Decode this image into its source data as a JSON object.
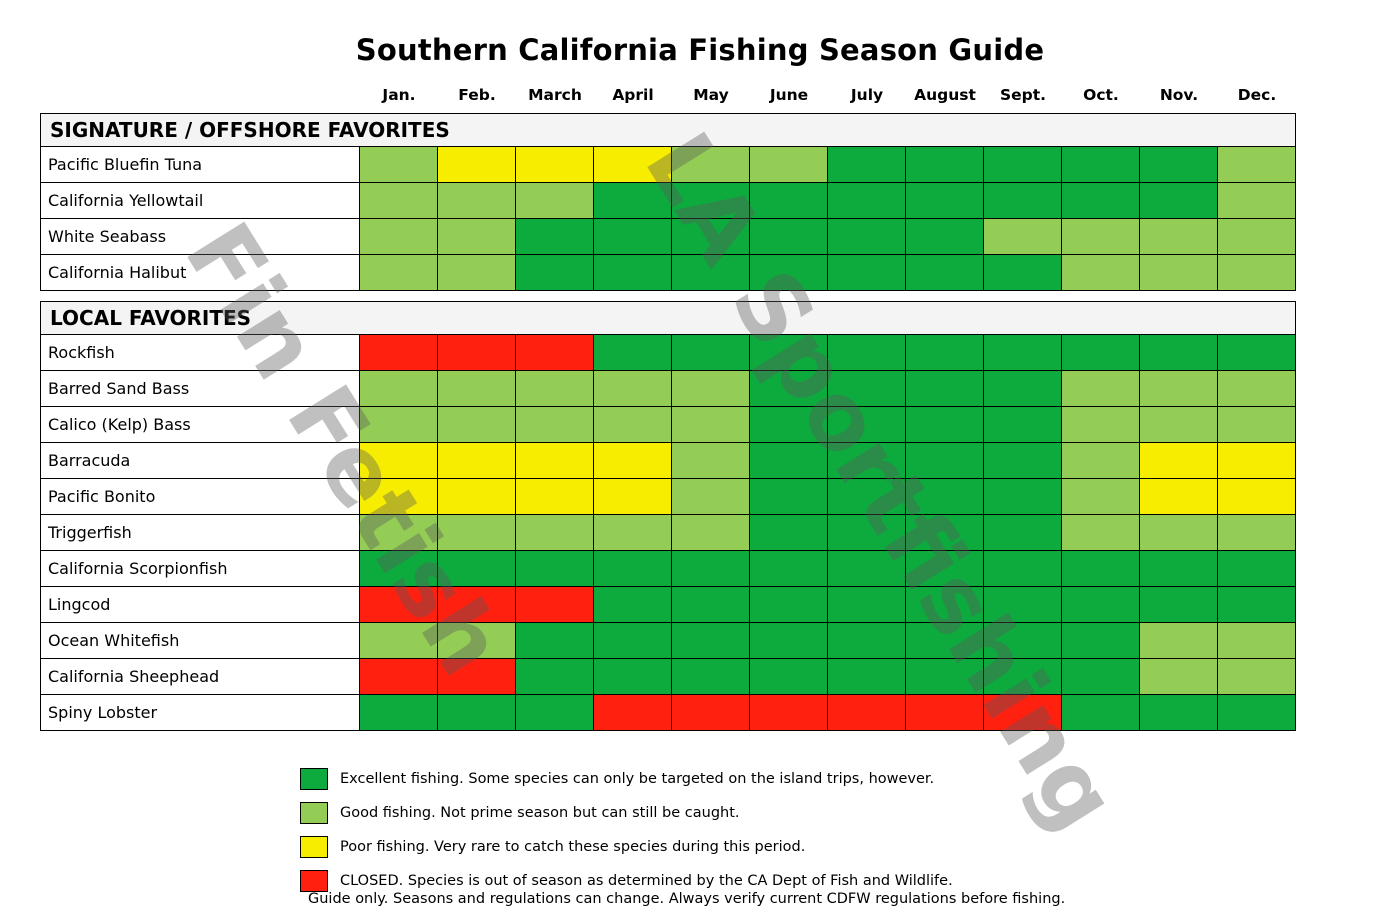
{
  "title": "Southern California Fishing Season Guide",
  "months": [
    "Jan.",
    "Feb.",
    "March",
    "April",
    "May",
    "June",
    "July",
    "August",
    "Sept.",
    "Oct.",
    "Nov.",
    "Dec."
  ],
  "colors": {
    "excellent": "#0dab3e",
    "good": "#93cd55",
    "poor": "#f6ed00",
    "closed": "#ff2010"
  },
  "sections": [
    {
      "title": "SIGNATURE / OFFSHORE FAVORITES",
      "rows": [
        {
          "name": "Pacific Bluefin Tuna",
          "values": [
            "good",
            "poor",
            "poor",
            "poor",
            "good",
            "good",
            "excellent",
            "excellent",
            "excellent",
            "excellent",
            "excellent",
            "good"
          ]
        },
        {
          "name": "California Yellowtail",
          "values": [
            "good",
            "good",
            "good",
            "excellent",
            "excellent",
            "excellent",
            "excellent",
            "excellent",
            "excellent",
            "excellent",
            "excellent",
            "good"
          ]
        },
        {
          "name": "White Seabass",
          "values": [
            "good",
            "good",
            "excellent",
            "excellent",
            "excellent",
            "excellent",
            "excellent",
            "excellent",
            "good",
            "good",
            "good",
            "good"
          ]
        },
        {
          "name": "California Halibut",
          "values": [
            "good",
            "good",
            "excellent",
            "excellent",
            "excellent",
            "excellent",
            "excellent",
            "excellent",
            "excellent",
            "good",
            "good",
            "good"
          ]
        }
      ]
    },
    {
      "title": "LOCAL FAVORITES",
      "rows": [
        {
          "name": "Rockfish",
          "values": [
            "closed",
            "closed",
            "closed",
            "excellent",
            "excellent",
            "excellent",
            "excellent",
            "excellent",
            "excellent",
            "excellent",
            "excellent",
            "excellent"
          ]
        },
        {
          "name": "Barred Sand Bass",
          "values": [
            "good",
            "good",
            "good",
            "good",
            "good",
            "excellent",
            "excellent",
            "excellent",
            "excellent",
            "good",
            "good",
            "good"
          ]
        },
        {
          "name": "Calico (Kelp) Bass",
          "values": [
            "good",
            "good",
            "good",
            "good",
            "good",
            "excellent",
            "excellent",
            "excellent",
            "excellent",
            "good",
            "good",
            "good"
          ]
        },
        {
          "name": "Barracuda",
          "values": [
            "poor",
            "poor",
            "poor",
            "poor",
            "good",
            "excellent",
            "excellent",
            "excellent",
            "excellent",
            "good",
            "poor",
            "poor"
          ]
        },
        {
          "name": "Pacific Bonito",
          "values": [
            "poor",
            "poor",
            "poor",
            "poor",
            "good",
            "excellent",
            "excellent",
            "excellent",
            "excellent",
            "good",
            "poor",
            "poor"
          ]
        },
        {
          "name": "Triggerfish",
          "values": [
            "good",
            "good",
            "good",
            "good",
            "good",
            "excellent",
            "excellent",
            "excellent",
            "excellent",
            "good",
            "good",
            "good"
          ]
        },
        {
          "name": "California Scorpionfish",
          "values": [
            "excellent",
            "excellent",
            "excellent",
            "excellent",
            "excellent",
            "excellent",
            "excellent",
            "excellent",
            "excellent",
            "excellent",
            "excellent",
            "excellent"
          ]
        },
        {
          "name": "Lingcod",
          "values": [
            "closed",
            "closed",
            "closed",
            "excellent",
            "excellent",
            "excellent",
            "excellent",
            "excellent",
            "excellent",
            "excellent",
            "excellent",
            "excellent"
          ]
        },
        {
          "name": "Ocean Whitefish",
          "values": [
            "good",
            "good",
            "excellent",
            "excellent",
            "excellent",
            "excellent",
            "excellent",
            "excellent",
            "excellent",
            "excellent",
            "good",
            "good"
          ]
        },
        {
          "name": "California Sheephead",
          "values": [
            "closed",
            "closed",
            "excellent",
            "excellent",
            "excellent",
            "excellent",
            "excellent",
            "excellent",
            "excellent",
            "excellent",
            "good",
            "good"
          ]
        },
        {
          "name": "Spiny Lobster",
          "values": [
            "excellent",
            "excellent",
            "excellent",
            "closed",
            "closed",
            "closed",
            "closed",
            "closed",
            "closed",
            "excellent",
            "excellent",
            "excellent"
          ]
        }
      ]
    }
  ],
  "legend": [
    {
      "key": "excellent",
      "text": "Excellent fishing. Some species can only be targeted on the island trips, however."
    },
    {
      "key": "good",
      "text": "Good fishing. Not prime season but can still be caught."
    },
    {
      "key": "poor",
      "text": "Poor fishing. Very rare to catch these species during this period."
    },
    {
      "key": "closed",
      "text": "CLOSED. Species is out of season as determined by the CA Dept of Fish and Wildlife."
    }
  ],
  "note": "Guide only. Seasons and regulations can change. Always verify current CDFW regulations before fishing.",
  "watermarks": [
    "LA Sportfishing",
    "Fin Fetish"
  ],
  "chart_data": {
    "type": "heatmap",
    "title": "Southern California Fishing Season Guide",
    "x": [
      "Jan.",
      "Feb.",
      "March",
      "April",
      "May",
      "June",
      "July",
      "August",
      "Sept.",
      "Oct.",
      "Nov.",
      "Dec."
    ],
    "scale": {
      "excellent": 3,
      "good": 2,
      "poor": 1,
      "closed": 0
    },
    "groups": [
      {
        "name": "SIGNATURE / OFFSHORE FAVORITES",
        "series": [
          {
            "name": "Pacific Bluefin Tuna",
            "values": [
              2,
              1,
              1,
              1,
              2,
              2,
              3,
              3,
              3,
              3,
              3,
              2
            ]
          },
          {
            "name": "California Yellowtail",
            "values": [
              2,
              2,
              2,
              3,
              3,
              3,
              3,
              3,
              3,
              3,
              3,
              2
            ]
          },
          {
            "name": "White Seabass",
            "values": [
              2,
              2,
              3,
              3,
              3,
              3,
              3,
              3,
              2,
              2,
              2,
              2
            ]
          },
          {
            "name": "California Halibut",
            "values": [
              2,
              2,
              3,
              3,
              3,
              3,
              3,
              3,
              3,
              2,
              2,
              2
            ]
          }
        ]
      },
      {
        "name": "LOCAL FAVORITES",
        "series": [
          {
            "name": "Rockfish",
            "values": [
              0,
              0,
              0,
              3,
              3,
              3,
              3,
              3,
              3,
              3,
              3,
              3
            ]
          },
          {
            "name": "Barred Sand Bass",
            "values": [
              2,
              2,
              2,
              2,
              2,
              3,
              3,
              3,
              3,
              2,
              2,
              2
            ]
          },
          {
            "name": "Calico (Kelp) Bass",
            "values": [
              2,
              2,
              2,
              2,
              2,
              3,
              3,
              3,
              3,
              2,
              2,
              2
            ]
          },
          {
            "name": "Barracuda",
            "values": [
              1,
              1,
              1,
              1,
              2,
              3,
              3,
              3,
              3,
              2,
              1,
              1
            ]
          },
          {
            "name": "Pacific Bonito",
            "values": [
              1,
              1,
              1,
              1,
              2,
              3,
              3,
              3,
              3,
              2,
              1,
              1
            ]
          },
          {
            "name": "Triggerfish",
            "values": [
              2,
              2,
              2,
              2,
              2,
              3,
              3,
              3,
              3,
              2,
              2,
              2
            ]
          },
          {
            "name": "California Scorpionfish",
            "values": [
              3,
              3,
              3,
              3,
              3,
              3,
              3,
              3,
              3,
              3,
              3,
              3
            ]
          },
          {
            "name": "Lingcod",
            "values": [
              0,
              0,
              0,
              3,
              3,
              3,
              3,
              3,
              3,
              3,
              3,
              3
            ]
          },
          {
            "name": "Ocean Whitefish",
            "values": [
              2,
              2,
              3,
              3,
              3,
              3,
              3,
              3,
              3,
              3,
              2,
              2
            ]
          },
          {
            "name": "California Sheephead",
            "values": [
              0,
              0,
              3,
              3,
              3,
              3,
              3,
              3,
              3,
              3,
              2,
              2
            ]
          },
          {
            "name": "Spiny Lobster",
            "values": [
              3,
              3,
              3,
              0,
              0,
              0,
              0,
              0,
              0,
              3,
              3,
              3
            ]
          }
        ]
      }
    ],
    "legend": [
      "Excellent fishing",
      "Good fishing",
      "Poor fishing",
      "CLOSED"
    ]
  }
}
